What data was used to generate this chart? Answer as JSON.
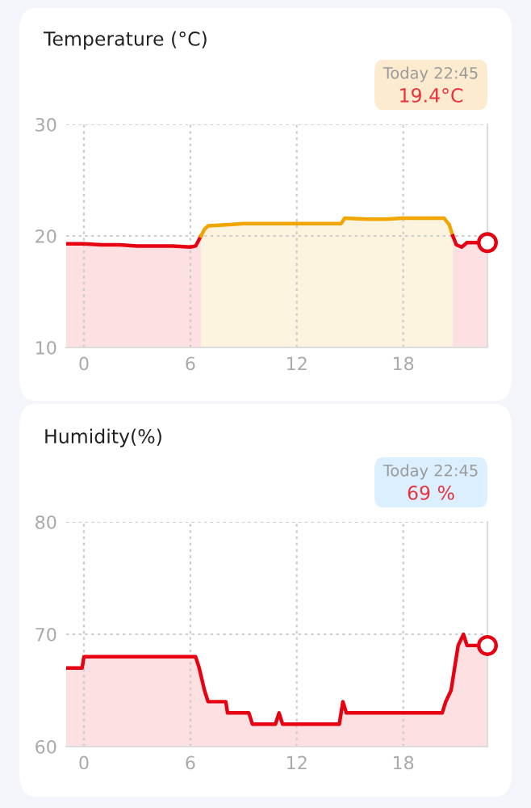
{
  "chart_data": [
    {
      "type": "area",
      "title": "Temperature (°C)",
      "annotations": [
        "Today 22:45",
        "19.4°C"
      ],
      "xlim": [
        -1,
        22.75
      ],
      "ylim": [
        10,
        30
      ],
      "xticks": [
        0,
        6,
        12,
        18
      ],
      "yticks": [
        10,
        20,
        30
      ],
      "grid": true,
      "legend": false,
      "series": [
        {
          "color": "#e60012",
          "x": [
            -1,
            0,
            1,
            2,
            3,
            4,
            5,
            6,
            6.3,
            6.6
          ],
          "values": [
            19.3,
            19.3,
            19.2,
            19.2,
            19.1,
            19.1,
            19.1,
            19.0,
            19.1,
            20.0
          ]
        },
        {
          "color": "#f0a500",
          "x": [
            6.6,
            6.8,
            7,
            8,
            9,
            10,
            12,
            14.5,
            14.7,
            16,
            17,
            18,
            19,
            20.3,
            20.6,
            20.8
          ],
          "values": [
            20.0,
            20.6,
            20.9,
            21.0,
            21.1,
            21.1,
            21.1,
            21.1,
            21.6,
            21.5,
            21.5,
            21.6,
            21.6,
            21.6,
            21.0,
            20.0
          ]
        },
        {
          "color": "#e60012",
          "x": [
            20.8,
            21.0,
            21.3,
            21.6,
            22,
            22.75
          ],
          "values": [
            20.0,
            19.2,
            19.0,
            19.4,
            19.4,
            19.4
          ]
        },
        {
          "type": "scatter",
          "color": "#e60012",
          "marker": "circle",
          "x": [
            22.75
          ],
          "values": [
            19.4
          ]
        }
      ]
    },
    {
      "type": "area",
      "title": "Humidity(%)",
      "annotations": [
        "Today 22:45",
        "69 %"
      ],
      "xlim": [
        -1,
        22.75
      ],
      "ylim": [
        60,
        80
      ],
      "xticks": [
        0,
        6,
        12,
        18
      ],
      "yticks": [
        60,
        70,
        80
      ],
      "grid": true,
      "legend": false,
      "series": [
        {
          "color": "#e60012",
          "x": [
            -1,
            -0.1,
            0,
            6.3,
            6.5,
            6.8,
            7,
            8,
            8.1,
            9.3,
            9.5,
            10.8,
            11,
            11.2,
            14.4,
            14.6,
            14.8,
            20.2,
            20.4,
            20.7,
            20.9,
            21.1,
            21.4,
            21.6,
            22,
            22.75
          ],
          "values": [
            67,
            67,
            68,
            68,
            67,
            65,
            64,
            64,
            63,
            63,
            62,
            62,
            63,
            62,
            62,
            64,
            63,
            63,
            64,
            65,
            67,
            69,
            70,
            69,
            69,
            69
          ]
        },
        {
          "type": "scatter",
          "color": "#e60012",
          "marker": "circle",
          "x": [
            22.75
          ],
          "values": [
            69
          ]
        }
      ]
    }
  ]
}
